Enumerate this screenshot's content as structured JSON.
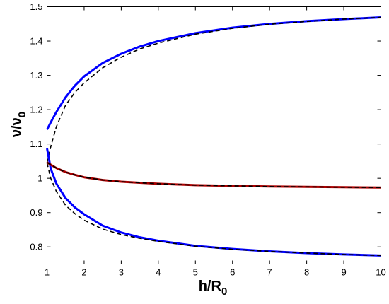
{
  "chart_data": {
    "type": "line",
    "title": "",
    "xlabel": {
      "main": "h/R",
      "sub": "0"
    },
    "ylabel": {
      "main": "ν/ν",
      "sub": "0"
    },
    "xlim": [
      1,
      10
    ],
    "ylim": [
      0.75,
      1.5
    ],
    "xticks": [
      1,
      2,
      3,
      4,
      5,
      6,
      7,
      8,
      9,
      10
    ],
    "yticks": [
      0.8,
      0.9,
      1,
      1.1,
      1.2,
      1.3,
      1.4,
      1.5
    ],
    "xtick_labels": [
      "1",
      "2",
      "3",
      "4",
      "5",
      "6",
      "7",
      "8",
      "9",
      "10"
    ],
    "ytick_labels": [
      "0.8",
      "0.9",
      "1",
      "1.1",
      "1.2",
      "1.3",
      "1.4",
      "1.5"
    ],
    "grid": false,
    "legend": "none",
    "series": [
      {
        "style": "solid",
        "color": "#0000ff",
        "x": [
          1,
          1.1,
          1.25,
          1.5,
          1.75,
          2,
          2.5,
          3,
          3.5,
          4,
          5,
          6,
          7,
          8,
          9,
          10
        ],
        "y": [
          1.142,
          1.163,
          1.193,
          1.236,
          1.27,
          1.297,
          1.336,
          1.363,
          1.384,
          1.4,
          1.423,
          1.439,
          1.45,
          1.458,
          1.464,
          1.469
        ]
      },
      {
        "style": "dashed",
        "color": "#000000",
        "x": [
          1,
          1.1,
          1.25,
          1.5,
          1.75,
          2,
          2.5,
          3,
          3.5,
          4,
          5,
          6,
          7,
          8,
          9,
          10
        ],
        "y": [
          1.045,
          1.092,
          1.15,
          1.213,
          1.25,
          1.278,
          1.322,
          1.353,
          1.377,
          1.394,
          1.42,
          1.437,
          1.449,
          1.457,
          1.464,
          1.469
        ]
      },
      {
        "style": "solid",
        "color": "#0000ff",
        "x": [
          1,
          1.1,
          1.25,
          1.5,
          1.75,
          2,
          2.5,
          3,
          3.5,
          4,
          5,
          6,
          7,
          8,
          9,
          10
        ],
        "y": [
          1.087,
          1.028,
          0.985,
          0.942,
          0.915,
          0.895,
          0.862,
          0.842,
          0.828,
          0.818,
          0.803,
          0.794,
          0.787,
          0.782,
          0.778,
          0.775
        ]
      },
      {
        "style": "dashed",
        "color": "#000000",
        "x": [
          1,
          1.1,
          1.25,
          1.5,
          1.75,
          2,
          2.5,
          3,
          3.5,
          4,
          5,
          6,
          7,
          8,
          9,
          10
        ],
        "y": [
          1.045,
          1.0,
          0.962,
          0.921,
          0.897,
          0.878,
          0.852,
          0.836,
          0.825,
          0.816,
          0.802,
          0.793,
          0.787,
          0.782,
          0.778,
          0.775
        ]
      },
      {
        "style": "solid",
        "color": "#aa0000",
        "x": [
          1,
          1.25,
          1.5,
          1.75,
          2,
          2.5,
          3,
          3.5,
          4,
          5,
          6,
          7,
          8,
          9,
          10
        ],
        "y": [
          1.046,
          1.03,
          1.018,
          1.01,
          1.003,
          0.995,
          0.99,
          0.987,
          0.984,
          0.98,
          0.978,
          0.976,
          0.975,
          0.974,
          0.973
        ]
      },
      {
        "style": "dashed",
        "color": "#000000",
        "x": [
          1,
          1.25,
          1.5,
          1.75,
          2,
          2.5,
          3,
          3.5,
          4,
          5,
          6,
          7,
          8,
          9,
          10
        ],
        "y": [
          1.046,
          1.03,
          1.018,
          1.01,
          1.003,
          0.995,
          0.99,
          0.987,
          0.984,
          0.98,
          0.978,
          0.976,
          0.975,
          0.974,
          0.973
        ]
      }
    ]
  }
}
